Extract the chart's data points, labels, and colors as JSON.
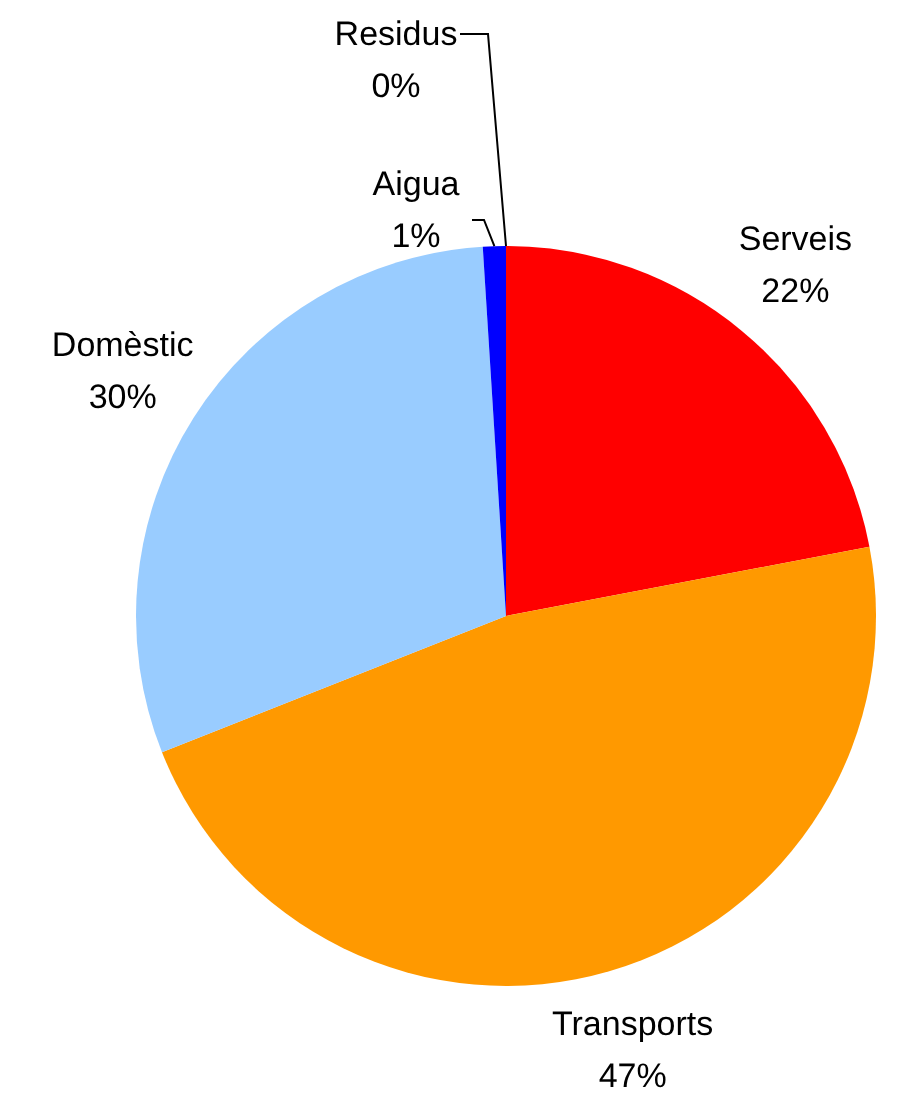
{
  "chart_data": {
    "type": "pie",
    "categories": [
      "Serveis",
      "Transports",
      "Domèstic",
      "Aigua",
      "Residus"
    ],
    "values": [
      22,
      47,
      30,
      1,
      0
    ],
    "value_labels": [
      "22%",
      "47%",
      "30%",
      "1%",
      "0%"
    ],
    "colors": [
      "#ff0000",
      "#ff9900",
      "#99ccff",
      "#0000ff",
      "#333333"
    ],
    "legend": false
  }
}
